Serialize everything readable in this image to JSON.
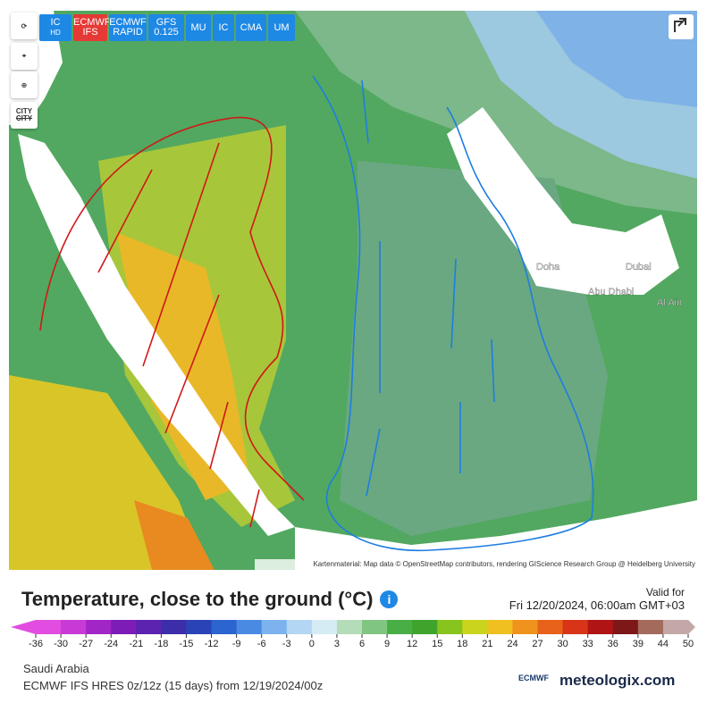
{
  "toolbar": {
    "buttons": [
      [
        "IC",
        "HD"
      ],
      [
        "ECMWF",
        "IFS"
      ],
      [
        "ECMWF",
        "RAPID"
      ],
      [
        "GFS",
        "0.125"
      ],
      [
        "MU"
      ],
      [
        "IC"
      ],
      [
        "CMA"
      ],
      [
        "UM"
      ]
    ],
    "city_toggle": "CITY"
  },
  "map": {
    "labels": [
      "Doha",
      "Dubai",
      "Abu Dhabi",
      "Al Ain"
    ],
    "attribution": "Kartenmaterial: Map data © OpenStreetMap contributors, rendering GIScience Research Group @ Heidelberg University"
  },
  "header": {
    "title": "Temperature, close to the ground (°C)",
    "valid_label": "Valid for",
    "valid_time": "Fri 12/20/2024, 06:00am GMT+03"
  },
  "colorbar": {
    "ticks": [
      -36,
      -30,
      -27,
      -24,
      -21,
      -18,
      -15,
      -12,
      -9,
      -6,
      -3,
      0,
      3,
      6,
      9,
      12,
      15,
      18,
      21,
      24,
      27,
      30,
      33,
      36,
      39,
      44,
      50
    ],
    "colors": [
      "#e24ce0",
      "#c83ad6",
      "#a226c6",
      "#7e1cb8",
      "#5c22b0",
      "#3c2ea8",
      "#2a44b8",
      "#2c64d0",
      "#4a8ae2",
      "#7cb2ee",
      "#b2d6f4",
      "#d6ecf4",
      "#b4dcb8",
      "#80c680",
      "#4aae46",
      "#3ea42c",
      "#88c41e",
      "#cad41c",
      "#f0c020",
      "#f0921e",
      "#e8621a",
      "#d83418",
      "#b01414",
      "#7e1818",
      "#a46a5c",
      "#c4a8a8"
    ]
  },
  "footer": {
    "region": "Saudi Arabia",
    "model": "ECMWF IFS HRES 0z/12z (15 days) from 12/19/2024/00z",
    "logo_ecmwf": "ECMWF",
    "logo_site": "meteologix.com"
  }
}
